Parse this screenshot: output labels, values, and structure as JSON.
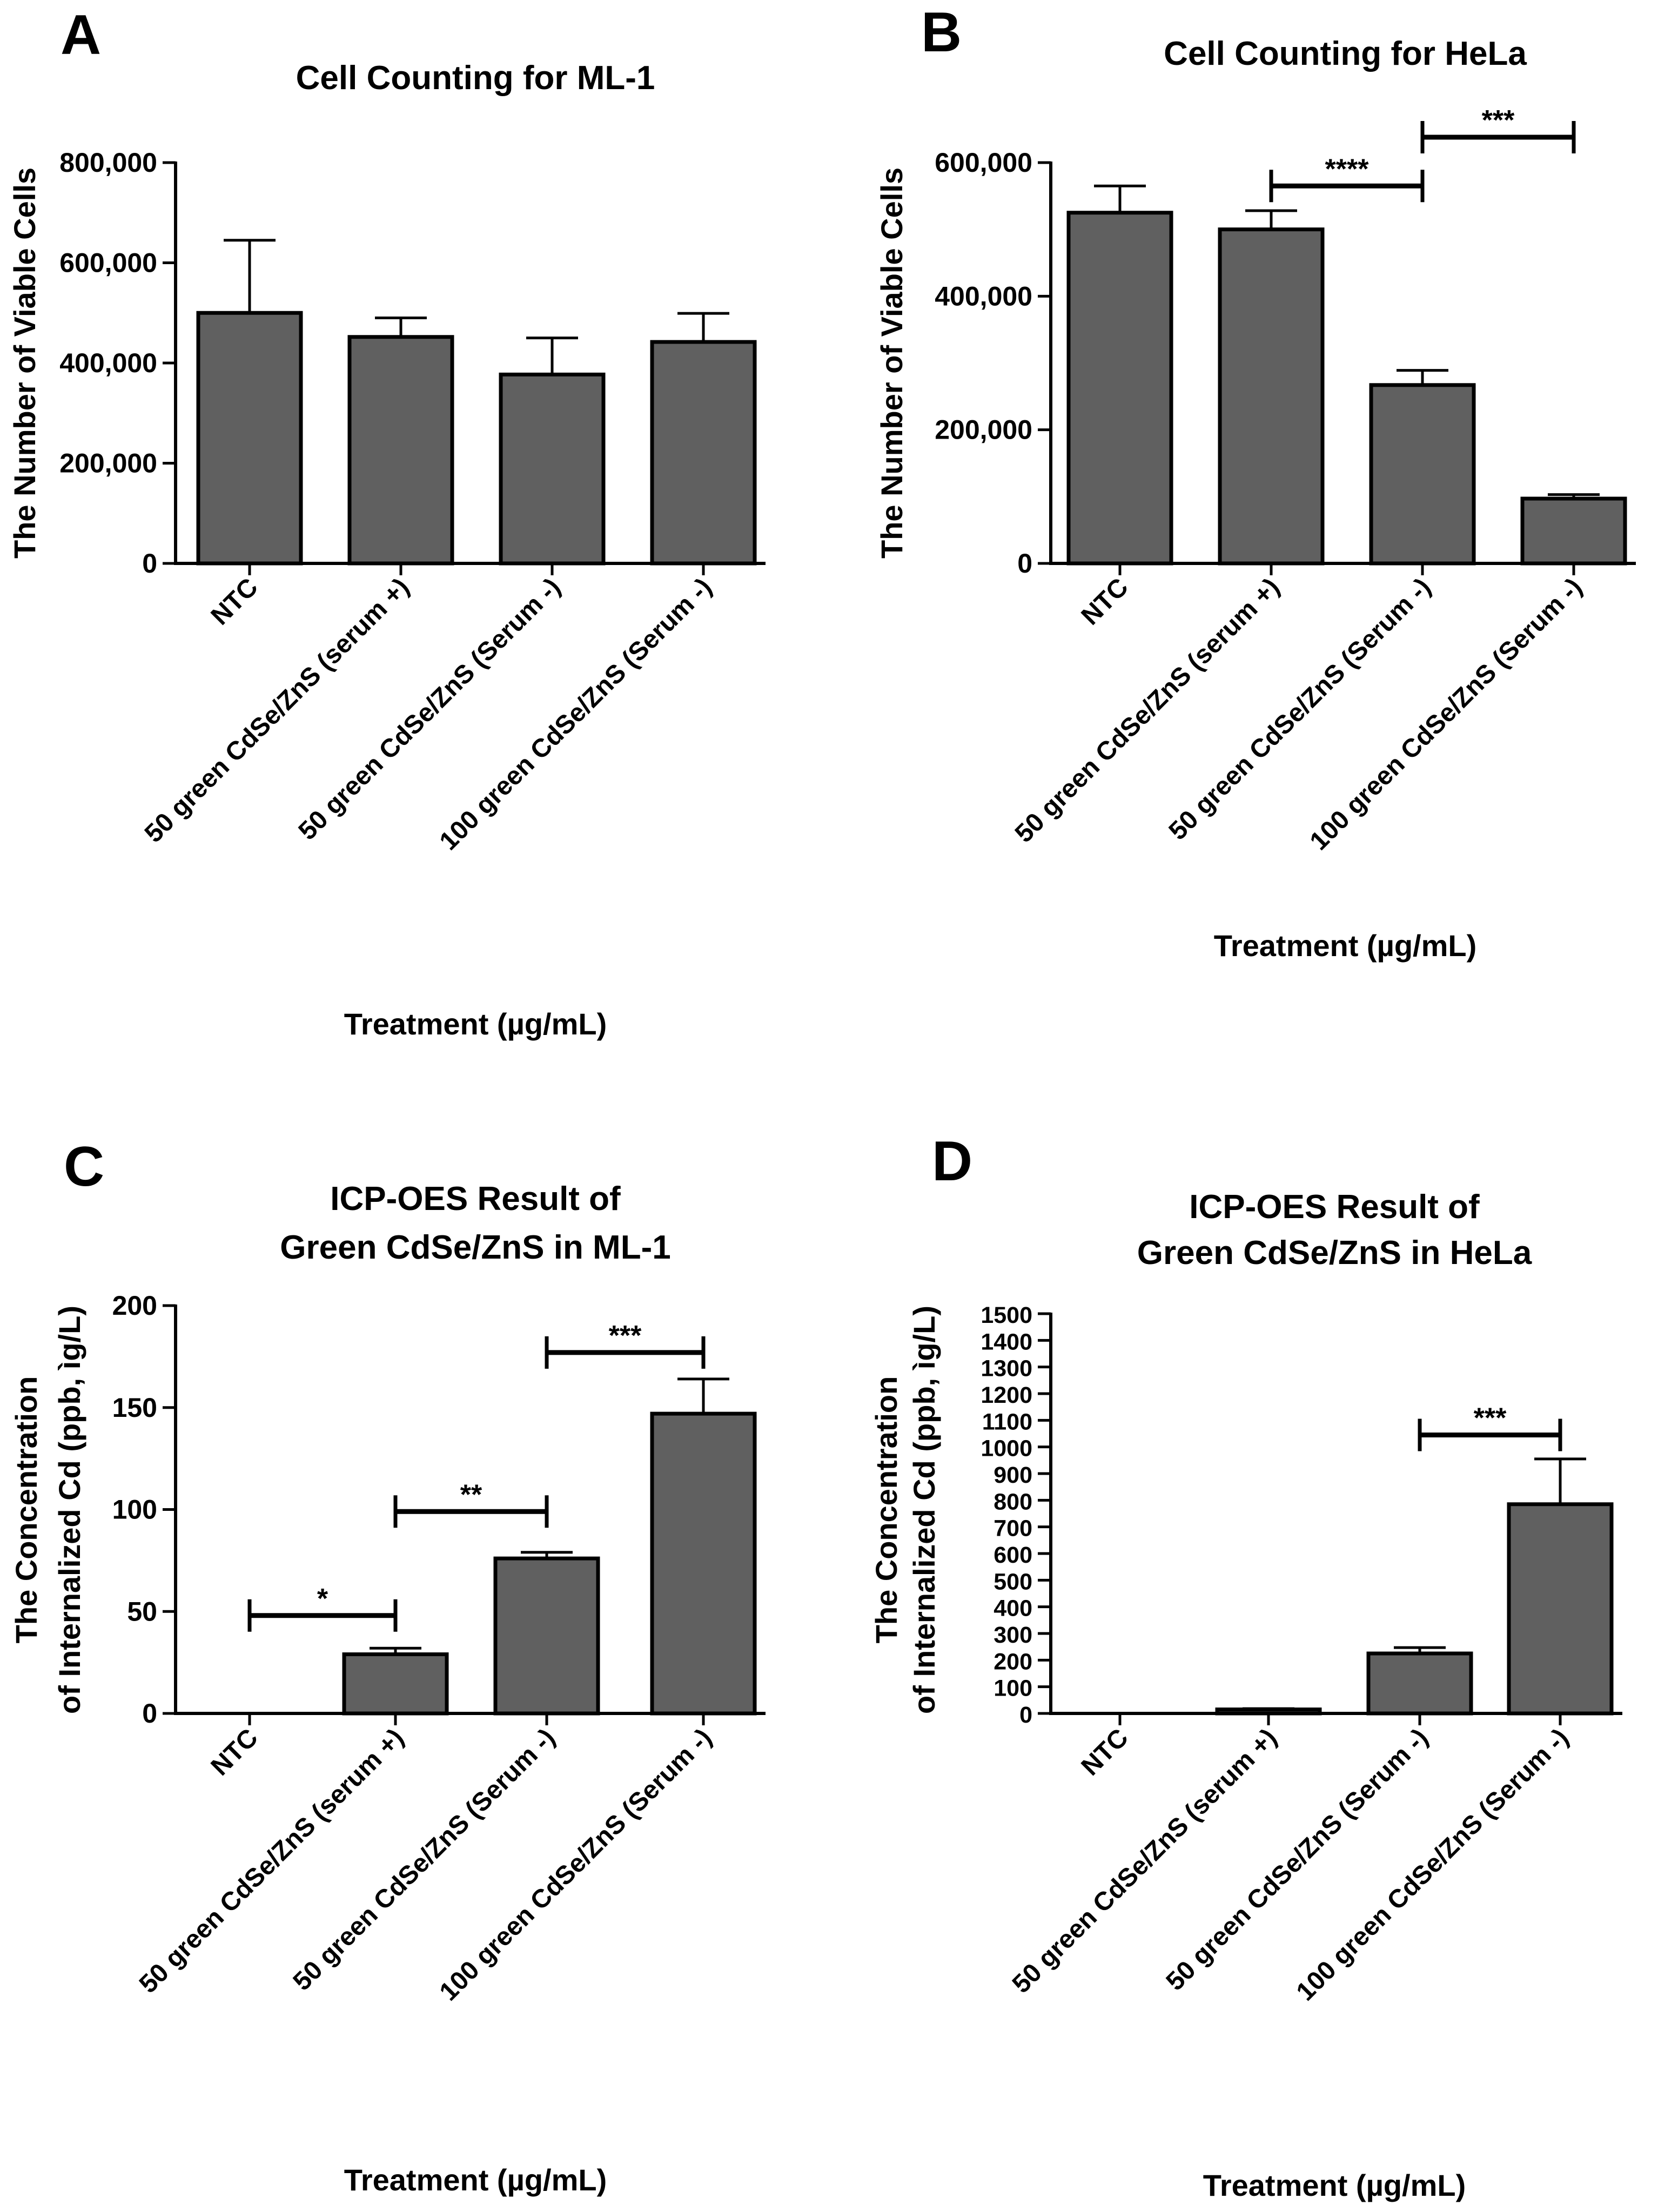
{
  "chart_data": [
    {
      "panel": "A",
      "type": "bar",
      "title": "Cell Counting for ML-1",
      "xlabel": "Treatment (µg/mL)",
      "ylabel": "The Number of Viable Cells",
      "categories": [
        "NTC",
        "50 green CdSe/ZnS (serum +)",
        "50 green CdSe/ZnS (Serum -)",
        "100 green CdSe/ZnS (Serum -)"
      ],
      "values": [
        500000,
        452000,
        377000,
        442000
      ],
      "errors": [
        145000,
        38000,
        73000,
        57000
      ],
      "ylim": [
        0,
        800000
      ],
      "yticks": [
        0,
        200000,
        400000,
        600000,
        800000
      ],
      "ytick_labels": [
        "0",
        "200,000",
        "400,000",
        "600,000",
        "800,000"
      ],
      "significance": [],
      "bar_color": "#606060"
    },
    {
      "panel": "B",
      "type": "bar",
      "title": "Cell Counting for HeLa",
      "xlabel": "Treatment (µg/mL)",
      "ylabel": "The Number of Viable Cells",
      "categories": [
        "NTC",
        "50 green CdSe/ZnS (serum +)",
        "50 green CdSe/ZnS (Serum -)",
        "100 green CdSe/ZnS (Serum -)"
      ],
      "values": [
        525000,
        500000,
        267000,
        97000
      ],
      "errors": [
        40000,
        28000,
        22000,
        6000
      ],
      "ylim": [
        0,
        600000
      ],
      "yticks": [
        0,
        200000,
        400000,
        600000
      ],
      "ytick_labels": [
        "0",
        "200,000",
        "400,000",
        "600,000"
      ],
      "significance": [
        {
          "from": 1,
          "to": 2,
          "y": 565000,
          "label": "****"
        },
        {
          "from": 2,
          "to": 3,
          "y": 638000,
          "label": "***"
        }
      ],
      "bar_color": "#606060"
    },
    {
      "panel": "C",
      "type": "bar",
      "title": "ICP-OES Result of",
      "title2": "Green CdSe/ZnS in ML-1",
      "xlabel": "Treatment (µg/mL)",
      "ylabel": "The Concentration",
      "ylabel2": "of Internalized Cd (ppb, ìg/L)",
      "categories": [
        "NTC",
        "50 green CdSe/ZnS (serum +)",
        "50 green CdSe/ZnS (Serum -)",
        "100 green CdSe/ZnS (Serum -)"
      ],
      "values": [
        0,
        29,
        76,
        147
      ],
      "errors": [
        0,
        3,
        3,
        17
      ],
      "ylim": [
        0,
        200
      ],
      "yticks": [
        0,
        50,
        100,
        150,
        200
      ],
      "ytick_labels": [
        "0",
        "50",
        "100",
        "150",
        "200"
      ],
      "significance": [
        {
          "from": 0,
          "to": 1,
          "y": 48,
          "label": "*"
        },
        {
          "from": 1,
          "to": 2,
          "y": 99,
          "label": "**"
        },
        {
          "from": 2,
          "to": 3,
          "y": 177,
          "label": "***"
        }
      ],
      "bar_color": "#606060"
    },
    {
      "panel": "D",
      "type": "bar",
      "title": "ICP-OES Result of",
      "title2": "Green CdSe/ZnS in HeLa",
      "xlabel": "Treatment (µg/mL)",
      "ylabel": "The Concentration",
      "ylabel2": "of Internalized Cd (ppb, ìg/L)",
      "categories": [
        "NTC",
        "50 green CdSe/ZnS (serum +)",
        "50 green CdSe/ZnS (Serum -)",
        "100 green CdSe/ZnS (Serum -)"
      ],
      "values": [
        0,
        15,
        225,
        785
      ],
      "errors": [
        0,
        3,
        22,
        170
      ],
      "ylim": [
        0,
        1500
      ],
      "yticks": [
        0,
        100,
        200,
        300,
        400,
        500,
        600,
        700,
        800,
        900,
        1000,
        1100,
        1200,
        1300,
        1400,
        1500
      ],
      "ytick_labels": [
        "0",
        "100",
        "200",
        "300",
        "400",
        "500",
        "600",
        "700",
        "800",
        "900",
        "1000",
        "1100",
        "1200",
        "1300",
        "1400",
        "1500"
      ],
      "significance": [
        {
          "from": 2,
          "to": 3,
          "y": 1045,
          "label": "***"
        }
      ],
      "bar_color": "#606060"
    }
  ]
}
